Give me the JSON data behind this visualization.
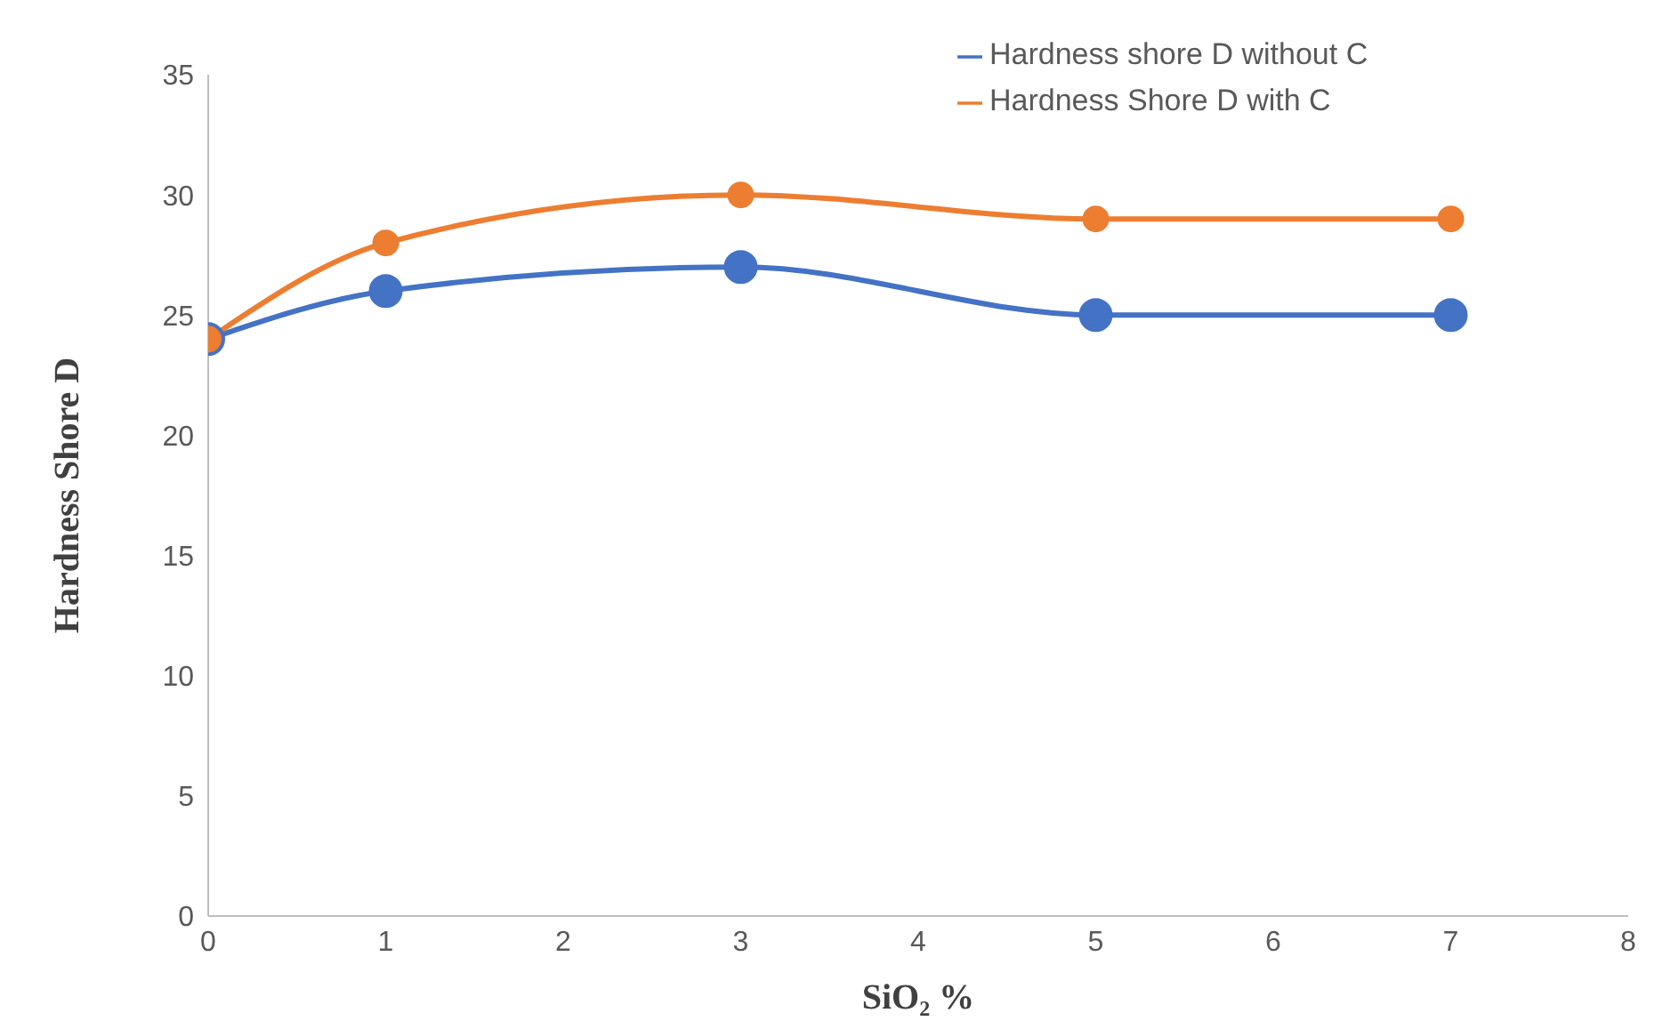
{
  "chart_data": {
    "type": "line",
    "xlabel": "SiO₂ %",
    "ylabel": "Hardness  Shore D",
    "x": [
      0,
      1,
      3,
      5,
      7
    ],
    "series": [
      {
        "name": "Hardness shore D without C",
        "color": "#4472c4",
        "values": [
          24,
          26,
          27,
          25,
          25
        ]
      },
      {
        "name": "Hardness Shore D with C",
        "color": "#ed7d31",
        "values": [
          24,
          28,
          30,
          29,
          29
        ]
      }
    ],
    "xlim": [
      0,
      8
    ],
    "xticks": [
      0,
      1,
      2,
      3,
      4,
      5,
      6,
      7,
      8
    ],
    "ylim": [
      0,
      35
    ],
    "yticks": [
      0,
      5,
      10,
      15,
      20,
      25,
      30,
      35
    ],
    "grid": false,
    "legend": "top right",
    "marker": "circle",
    "line_style": "solid"
  }
}
